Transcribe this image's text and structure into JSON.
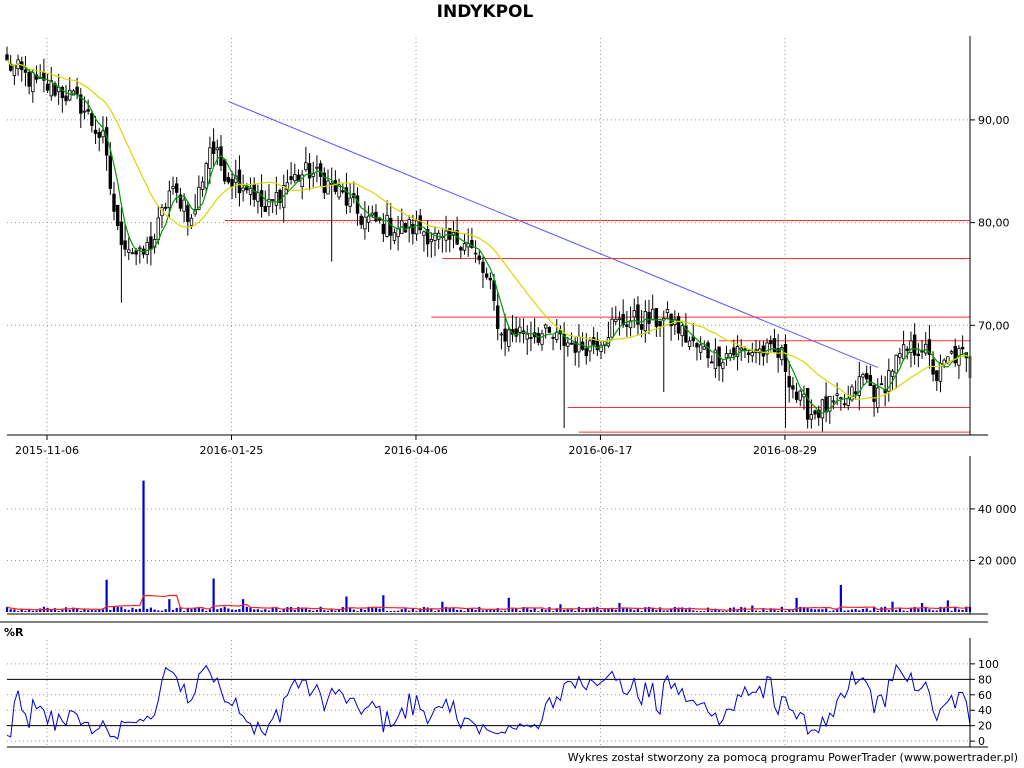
{
  "chart_data": [
    {
      "panel": "price",
      "type": "candlestick",
      "title": "INDYKPOL",
      "ylim": [
        60,
        97
      ],
      "y_ticks": [
        70,
        80,
        90
      ],
      "y_tick_labels": [
        "70,00",
        "80,00",
        "90,00"
      ],
      "date_labels": [
        "2015-11-06",
        "2016-01-25",
        "2016-04-06",
        "2016-06-17",
        "2016-08-29"
      ],
      "date_label_index": [
        0,
        50,
        100,
        150,
        200
      ],
      "session_count": 262,
      "anchors": [
        [
          0,
          95.5
        ],
        [
          8,
          93.5
        ],
        [
          14,
          93.0
        ],
        [
          20,
          91.5
        ],
        [
          26,
          88.0
        ],
        [
          30,
          79.0
        ],
        [
          36,
          76.5
        ],
        [
          40,
          78.5
        ],
        [
          44,
          83.0
        ],
        [
          48,
          82.0
        ],
        [
          50,
          80.0
        ],
        [
          55,
          87.5
        ],
        [
          60,
          84.5
        ],
        [
          66,
          83.5
        ],
        [
          70,
          81.0
        ],
        [
          76,
          84.0
        ],
        [
          82,
          85.0
        ],
        [
          90,
          83.0
        ],
        [
          96,
          80.5
        ],
        [
          100,
          80.0
        ],
        [
          106,
          79.5
        ],
        [
          112,
          79.5
        ],
        [
          118,
          78.0
        ],
        [
          124,
          78.5
        ],
        [
          128,
          76.0
        ],
        [
          131,
          73.5
        ],
        [
          134,
          69.0
        ],
        [
          140,
          69.5
        ],
        [
          146,
          69.0
        ],
        [
          150,
          68.5
        ],
        [
          156,
          68.0
        ],
        [
          160,
          68.5
        ],
        [
          164,
          70.0
        ],
        [
          168,
          70.5
        ],
        [
          174,
          70.5
        ],
        [
          180,
          70.5
        ],
        [
          186,
          68.0
        ],
        [
          192,
          67.0
        ],
        [
          198,
          67.5
        ],
        [
          204,
          67.5
        ],
        [
          210,
          67.0
        ],
        [
          214,
          63.0
        ],
        [
          218,
          61.5
        ],
        [
          222,
          62.0
        ],
        [
          228,
          62.5
        ],
        [
          232,
          65.0
        ],
        [
          236,
          63.0
        ],
        [
          240,
          66.0
        ],
        [
          244,
          67.5
        ],
        [
          248,
          68.0
        ],
        [
          252,
          65.0
        ],
        [
          256,
          67.0
        ],
        [
          259,
          67.0
        ],
        [
          261,
          65.5
        ]
      ],
      "lines": [
        {
          "kind": "trendline",
          "color": "#5555ff",
          "from": [
            60,
            91.8
          ],
          "to": [
            236,
            65.9
          ]
        },
        {
          "kind": "support-resistance",
          "color": "#ff3333",
          "level": 80.2,
          "x_from": 59,
          "x_to": 262
        },
        {
          "kind": "support-resistance",
          "color": "#ff3333",
          "level": 76.5,
          "x_from": 118,
          "x_to": 262
        },
        {
          "kind": "support-resistance",
          "color": "#ff3333",
          "level": 70.8,
          "x_from": 115,
          "x_to": 262
        },
        {
          "kind": "support-resistance",
          "color": "#ff3333",
          "level": 68.5,
          "x_from": 193,
          "x_to": 262
        },
        {
          "kind": "support-resistance",
          "color": "#ff3333",
          "level": 62.0,
          "x_from": 152,
          "x_to": 262
        },
        {
          "kind": "support-resistance",
          "color": "#ff3333",
          "level": 59.6,
          "x_from": 155,
          "x_to": 262
        }
      ],
      "moving_averages": [
        {
          "color": "#009900",
          "period": 5
        },
        {
          "color": "#d8d800",
          "period": 20
        }
      ],
      "colors": {
        "candle": "#000000",
        "up_body": "#ffffff",
        "last_candle": "#999999"
      }
    },
    {
      "panel": "volume",
      "type": "bar",
      "ylim": [
        0,
        52000
      ],
      "y_ticks": [
        20000,
        40000
      ],
      "y_tick_labels": [
        "20 000",
        "40 000"
      ],
      "spikes": [
        [
          27,
          12500
        ],
        [
          37,
          51000
        ],
        [
          44,
          5000
        ],
        [
          56,
          13000
        ],
        [
          64,
          5000
        ],
        [
          92,
          6000
        ],
        [
          102,
          6500
        ],
        [
          118,
          4000
        ],
        [
          136,
          5500
        ],
        [
          150,
          3000
        ],
        [
          166,
          3500
        ],
        [
          202,
          2500
        ],
        [
          214,
          5500
        ],
        [
          226,
          10500
        ],
        [
          240,
          4000
        ],
        [
          248,
          3500
        ],
        [
          255,
          4500
        ]
      ],
      "ma_color": "#ff2222",
      "bar_color": "#0000cc"
    },
    {
      "panel": "indicator",
      "type": "line",
      "name": "%R",
      "ylim": [
        -5,
        105
      ],
      "y_ticks": [
        0,
        20,
        40,
        60,
        80,
        100
      ],
      "y_tick_labels": [
        "0",
        "20",
        "40",
        "60",
        "80",
        "100"
      ],
      "ref_levels": [
        20,
        80
      ],
      "color": "#0000cc"
    }
  ],
  "footer": "Wykres został stworzony za pomocą programu PowerTrader (www.powertrader.pl)"
}
